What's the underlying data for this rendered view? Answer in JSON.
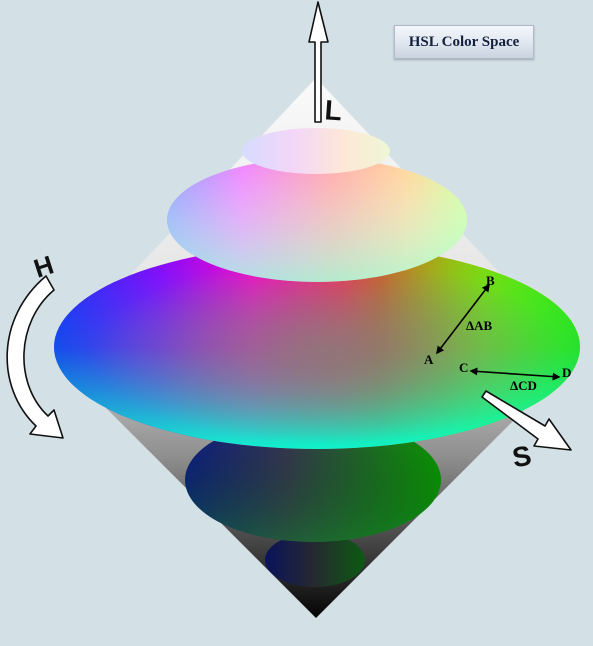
{
  "title": "HSL Color Space",
  "axes": {
    "lightness": "L",
    "hue": "H",
    "saturation": "S"
  },
  "points": {
    "a": "A",
    "b": "B",
    "c": "C",
    "d": "D"
  },
  "distances": {
    "ab": "ΔAB",
    "cd": "ΔCD"
  },
  "colors": {
    "background": "#d3e1e6",
    "title_text": "#14213d"
  }
}
